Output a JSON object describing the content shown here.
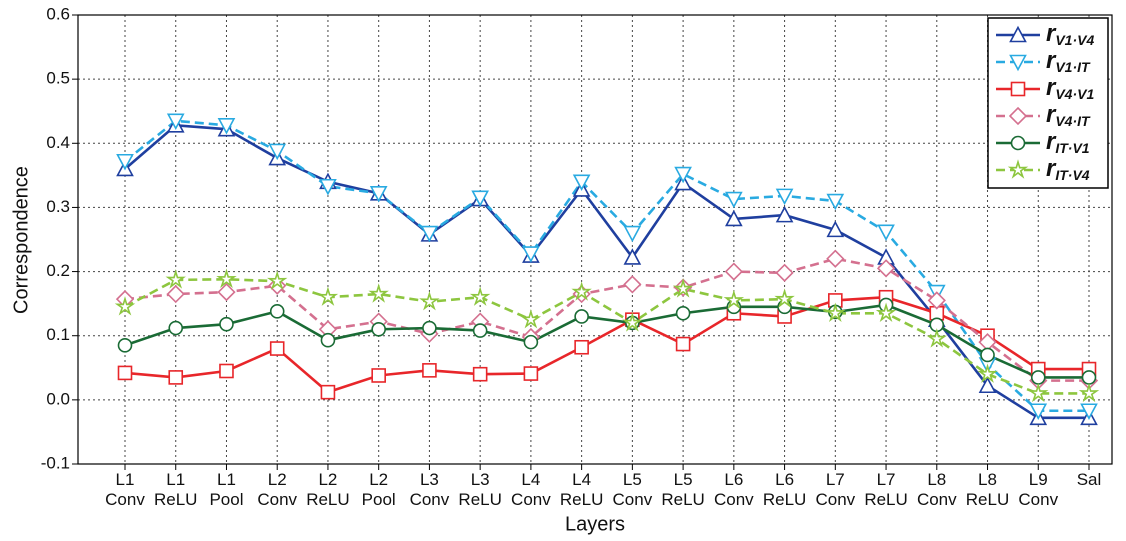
{
  "chart_data": {
    "type": "line",
    "x_label": "Layers",
    "y_label": "Correspondence",
    "categories": [
      "L1\nConv",
      "L1\nReLU",
      "L1\nPool",
      "L2\nConv",
      "L2\nReLU",
      "L2\nPool",
      "L3\nConv",
      "L3\nReLU",
      "L4\nConv",
      "L4\nReLU",
      "L5\nConv",
      "L5\nReLU",
      "L6\nConv",
      "L6\nReLU",
      "L7\nConv",
      "L7\nReLU",
      "L8\nConv",
      "L8\nReLU",
      "L9\nConv",
      "Sal"
    ],
    "ylim": [
      -0.1,
      0.6
    ],
    "yticks": [
      -0.1,
      {
        "value": 0,
        "label": "0.0"
      },
      0.1,
      0.2,
      0.3,
      0.4,
      0.5,
      0.6
    ],
    "grid": true,
    "legend": "upper right",
    "series": [
      {
        "name": "rV1·V4",
        "color": "#1f3f9f",
        "marker": "triangle-up",
        "dashed": false,
        "values": [
          0.36,
          0.428,
          0.422,
          0.377,
          0.34,
          0.322,
          0.258,
          0.313,
          0.225,
          0.328,
          0.222,
          0.338,
          0.282,
          0.288,
          0.265,
          0.222,
          0.125,
          0.022,
          -0.028,
          -0.028
        ]
      },
      {
        "name": "rV1·IT",
        "color": "#29aae1",
        "marker": "triangle-down",
        "dashed": true,
        "values": [
          0.372,
          0.435,
          0.428,
          0.388,
          0.333,
          0.322,
          0.26,
          0.315,
          0.228,
          0.34,
          0.26,
          0.352,
          0.313,
          0.318,
          0.31,
          0.262,
          0.168,
          0.055,
          -0.017,
          -0.017
        ]
      },
      {
        "name": "rV4·V1",
        "color": "#e8262a",
        "marker": "square",
        "dashed": false,
        "values": [
          0.042,
          0.035,
          0.045,
          0.08,
          0.012,
          0.038,
          0.046,
          0.04,
          0.041,
          0.082,
          0.125,
          0.087,
          0.135,
          0.13,
          0.155,
          0.16,
          0.135,
          0.1,
          0.048,
          0.048
        ]
      },
      {
        "name": "rV4·IT",
        "color": "#d4708f",
        "marker": "diamond",
        "dashed": true,
        "values": [
          0.157,
          0.165,
          0.168,
          0.178,
          0.11,
          0.122,
          0.103,
          0.122,
          0.098,
          0.165,
          0.18,
          0.175,
          0.2,
          0.198,
          0.22,
          0.205,
          0.155,
          0.09,
          0.03,
          0.03
        ]
      },
      {
        "name": "rIT·V1",
        "color": "#1a6b35",
        "marker": "circle",
        "dashed": false,
        "values": [
          0.085,
          0.112,
          0.118,
          0.138,
          0.093,
          0.11,
          0.112,
          0.108,
          0.09,
          0.13,
          0.12,
          0.135,
          0.145,
          0.145,
          0.137,
          0.148,
          0.117,
          0.07,
          0.035,
          0.035
        ]
      },
      {
        "name": "rIT·V4",
        "color": "#8dc63f",
        "marker": "star",
        "dashed": true,
        "values": [
          0.145,
          0.187,
          0.188,
          0.185,
          0.16,
          0.165,
          0.153,
          0.16,
          0.125,
          0.168,
          0.12,
          0.173,
          0.155,
          0.157,
          0.135,
          0.135,
          0.095,
          0.04,
          0.01,
          0.01
        ]
      }
    ]
  }
}
